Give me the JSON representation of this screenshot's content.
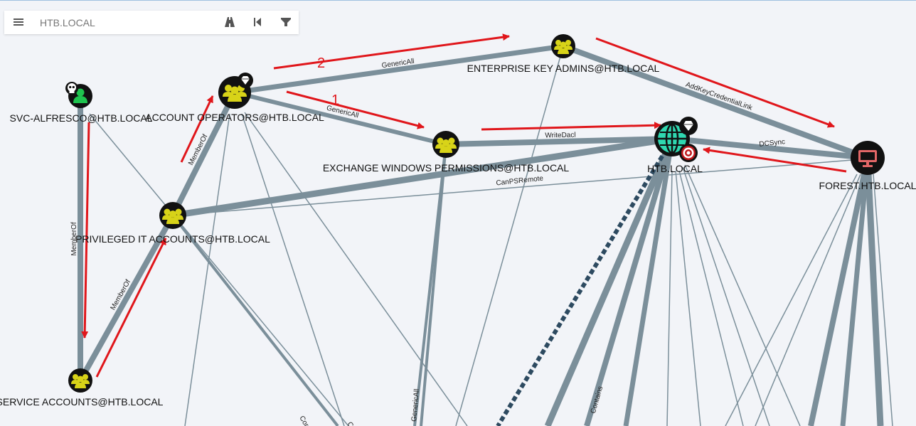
{
  "search": {
    "placeholder": "HTB.LOCAL"
  },
  "toolbar": {
    "menu_icon": "hamburger-menu-icon",
    "pathfinding_icon": "road-icon",
    "back_icon": "skip-back-icon",
    "filter_icon": "filter-icon"
  },
  "colors": {
    "background": "#f2f4f8",
    "edge": "#7b8f9a",
    "attack_path": "#e0161b",
    "group_node": "#d8d318",
    "user_node": "#1fc44f",
    "domain_node": "#2fd8b0",
    "computer_node": "#e26767"
  },
  "nodes": {
    "svc_alfresco": "SVC-ALFRESCO@HTB.LOCAL",
    "account_operators": "ACCOUNT OPERATORS@HTB.LOCAL",
    "enterprise_key_admins": "ENTERPRISE KEY ADMINS@HTB.LOCAL",
    "exchange_windows_permissions": "EXCHANGE WINDOWS PERMISSIONS@HTB.LOCAL",
    "htb_local": "HTB.LOCAL",
    "forest": "FOREST.HTB.LOCAL",
    "privileged_it_accounts": "PRIVILEGED IT ACCOUNTS@HTB.LOCAL",
    "service_accounts": "SERVICE ACCOUNTS@HTB.LOCAL"
  },
  "edges": {
    "svc_memberof": "MemberOf",
    "service_memberof": "MemberOf",
    "privileged_memberof": "MemberOf",
    "ao_genericall_eka": "GenericAll",
    "ao_genericall_ewp": "GenericAll",
    "ewp_writedacl": "WriteDacl",
    "eka_addkeycredentiallink": "AddKeyCredentialLink",
    "forest_dcsync": "DCSync",
    "privileged_canpsremote": "CanPSRemote",
    "bottom_genericall": "GenericAll",
    "bottom_contains": "Contains",
    "bottom_cont_1": "Cor",
    "bottom_cont_2": "C"
  },
  "steps": {
    "one": "1",
    "two": "2"
  }
}
